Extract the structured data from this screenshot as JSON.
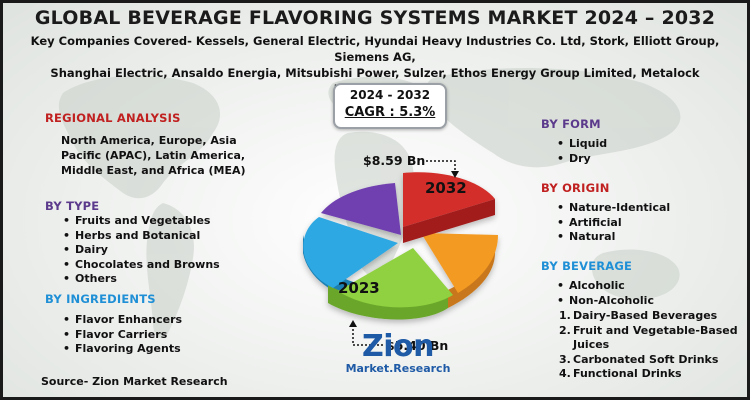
{
  "title": "GLOBAL BEVERAGE FLAVORING SYSTEMS MARKET 2024 – 2032",
  "subtitle_line1": "Key Companies Covered- Kessels, General Electric, Hyundai Heavy Industries Co. Ltd, Stork, Elliott Group, Siemens AG,",
  "subtitle_line2": "Shanghai Electric, Ansaldo Energia, Mitsubishi Power, Sulzer, Ethos Energy Group Limited, Metalock Engineering.",
  "cagr": {
    "years": "2024 - 2032",
    "value": "CAGR : 5.3%"
  },
  "regional": {
    "heading": "REGIONAL ANALYSIS",
    "line1": "North America, Europe, Asia",
    "line2": "Pacific (APAC), Latin America,",
    "line3": "Middle East, and Africa (MEA)"
  },
  "by_type": {
    "heading": "BY TYPE",
    "items": [
      "Fruits and Vegetables",
      "Herbs and Botanical",
      "Dairy",
      "Chocolates and Browns",
      "Others"
    ]
  },
  "by_ingredients": {
    "heading": "BY INGREDIENTS",
    "items": [
      "Flavor Enhancers",
      "Flavor Carriers",
      "Flavoring Agents"
    ]
  },
  "by_form": {
    "heading": "BY FORM",
    "items": [
      "Liquid",
      "Dry"
    ]
  },
  "by_origin": {
    "heading": "BY ORIGIN",
    "items": [
      "Nature-Identical",
      "Artificial",
      "Natural"
    ]
  },
  "by_beverage": {
    "heading": "BY BEVERAGE",
    "items": [
      "Alcoholic",
      "Non-Alcoholic"
    ],
    "numbered": [
      {
        "n": "1.",
        "text": "Dairy-Based Beverages"
      },
      {
        "n": "2.",
        "text": "Fruit and Vegetable-Based"
      },
      {
        "n": "",
        "text": "Juices"
      },
      {
        "n": "3.",
        "text": "Carbonated Soft Drinks"
      },
      {
        "n": "4.",
        "text": "Functional Drinks"
      }
    ]
  },
  "pie": {
    "label_2032": "2032",
    "label_2023": "2023",
    "value_2032": "$8.59 Bn",
    "value_2023": "$5.40 Bn",
    "colors": [
      "#d32d2a",
      "#f39a24",
      "#8fd13f",
      "#2fa8e2",
      "#6f3fb0"
    ]
  },
  "source": "Source- Zion Market Research",
  "logo": {
    "main": "Zion",
    "sub": "Market.Research"
  }
}
